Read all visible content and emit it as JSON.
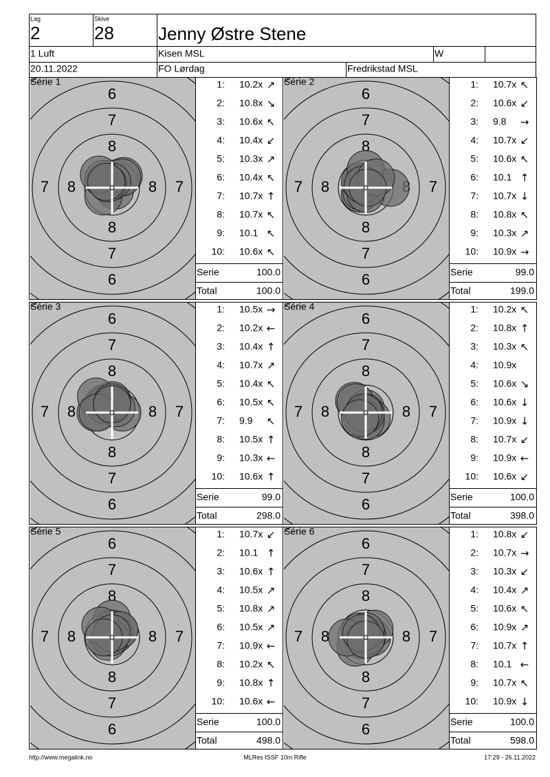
{
  "header": {
    "lag_label": "Lag",
    "lag": "2",
    "skive_label": "Skive",
    "skive": "28",
    "name": "Jenny Østre Stene",
    "class": "1 Luft",
    "club": "Kisen MSL",
    "gender": "W",
    "date": "20.11.2022",
    "event": "FO Lørdag",
    "location": "Fredrikstad MSL"
  },
  "target_rings": [
    "6",
    "7",
    "8"
  ],
  "series": [
    {
      "title": "Série 1",
      "shots": [
        {
          "no": "1:",
          "score": "10.2x",
          "dir": "↗"
        },
        {
          "no": "2:",
          "score": "10.8x",
          "dir": "↘"
        },
        {
          "no": "3:",
          "score": "10.6x",
          "dir": "↖"
        },
        {
          "no": "4:",
          "score": "10.4x",
          "dir": "↙"
        },
        {
          "no": "5:",
          "score": "10.3x",
          "dir": "↗"
        },
        {
          "no": "6:",
          "score": "10.4x",
          "dir": "↖"
        },
        {
          "no": "7:",
          "score": "10.7x",
          "dir": "↑"
        },
        {
          "no": "8:",
          "score": "10.7x",
          "dir": "↖"
        },
        {
          "no": "9:",
          "score": "10.1",
          "dir": "↖"
        },
        {
          "no": "10:",
          "score": "10.6x",
          "dir": "↖"
        }
      ],
      "serie_label": "Serie",
      "serie": "100.0",
      "total_label": "Total",
      "total": "100.0"
    },
    {
      "title": "Série 2",
      "shots": [
        {
          "no": "1:",
          "score": "10.7x",
          "dir": "↖"
        },
        {
          "no": "2:",
          "score": "10.6x",
          "dir": "↙"
        },
        {
          "no": "3:",
          "score": "9.8",
          "dir": "→"
        },
        {
          "no": "4:",
          "score": "10.7x",
          "dir": "↙"
        },
        {
          "no": "5:",
          "score": "10.6x",
          "dir": "↖"
        },
        {
          "no": "6:",
          "score": "10.1",
          "dir": "↑"
        },
        {
          "no": "7:",
          "score": "10.7x",
          "dir": "↓"
        },
        {
          "no": "8:",
          "score": "10.8x",
          "dir": "↖"
        },
        {
          "no": "9:",
          "score": "10.3x",
          "dir": "↗"
        },
        {
          "no": "10:",
          "score": "10.9x",
          "dir": "→"
        }
      ],
      "serie_label": "Serie",
      "serie": "99.0",
      "total_label": "Total",
      "total": "199.0"
    },
    {
      "title": "Série 3",
      "shots": [
        {
          "no": "1:",
          "score": "10.5x",
          "dir": "→"
        },
        {
          "no": "2:",
          "score": "10.2x",
          "dir": "←"
        },
        {
          "no": "3:",
          "score": "10.4x",
          "dir": "↑"
        },
        {
          "no": "4:",
          "score": "10.7x",
          "dir": "↗"
        },
        {
          "no": "5:",
          "score": "10.4x",
          "dir": "↖"
        },
        {
          "no": "6:",
          "score": "10.5x",
          "dir": "↖"
        },
        {
          "no": "7:",
          "score": "9.9",
          "dir": "↖"
        },
        {
          "no": "8:",
          "score": "10.5x",
          "dir": "↑"
        },
        {
          "no": "9:",
          "score": "10.3x",
          "dir": "←"
        },
        {
          "no": "10:",
          "score": "10.6x",
          "dir": "↑"
        }
      ],
      "serie_label": "Serie",
      "serie": "99.0",
      "total_label": "Total",
      "total": "298.0"
    },
    {
      "title": "Série 4",
      "shots": [
        {
          "no": "1:",
          "score": "10.2x",
          "dir": "↖"
        },
        {
          "no": "2:",
          "score": "10.8x",
          "dir": "↑"
        },
        {
          "no": "3:",
          "score": "10.3x",
          "dir": "↖"
        },
        {
          "no": "4:",
          "score": "10.9x"
        },
        {
          "no": "5:",
          "score": "10.6x",
          "dir": "↘"
        },
        {
          "no": "6:",
          "score": "10.6x",
          "dir": "↓"
        },
        {
          "no": "7:",
          "score": "10.9x",
          "dir": "↓"
        },
        {
          "no": "8:",
          "score": "10.7x",
          "dir": "↙"
        },
        {
          "no": "9:",
          "score": "10.9x",
          "dir": "←"
        },
        {
          "no": "10:",
          "score": "10.6x",
          "dir": "↙"
        }
      ],
      "serie_label": "Serie",
      "serie": "100.0",
      "total_label": "Total",
      "total": "398.0"
    },
    {
      "title": "Série 5",
      "shots": [
        {
          "no": "1:",
          "score": "10.7x",
          "dir": "↙"
        },
        {
          "no": "2:",
          "score": "10.1",
          "dir": "↑"
        },
        {
          "no": "3:",
          "score": "10.6x",
          "dir": "↑"
        },
        {
          "no": "4:",
          "score": "10.5x",
          "dir": "↗"
        },
        {
          "no": "5:",
          "score": "10.8x",
          "dir": "↗"
        },
        {
          "no": "6:",
          "score": "10.5x",
          "dir": "↗"
        },
        {
          "no": "7:",
          "score": "10.9x",
          "dir": "←"
        },
        {
          "no": "8:",
          "score": "10.2x",
          "dir": "↖"
        },
        {
          "no": "9:",
          "score": "10.8x",
          "dir": "↑"
        },
        {
          "no": "10:",
          "score": "10.6x",
          "dir": "←"
        }
      ],
      "serie_label": "Serie",
      "serie": "100.0",
      "total_label": "Total",
      "total": "498.0"
    },
    {
      "title": "Série 6",
      "shots": [
        {
          "no": "1:",
          "score": "10.8x",
          "dir": "↙"
        },
        {
          "no": "2:",
          "score": "10.7x",
          "dir": "→"
        },
        {
          "no": "3:",
          "score": "10.3x",
          "dir": "↙"
        },
        {
          "no": "4:",
          "score": "10.4x",
          "dir": "↗"
        },
        {
          "no": "5:",
          "score": "10.6x",
          "dir": "↖"
        },
        {
          "no": "6:",
          "score": "10.9x",
          "dir": "↗"
        },
        {
          "no": "7:",
          "score": "10.7x",
          "dir": "↑"
        },
        {
          "no": "8:",
          "score": "10.1",
          "dir": "←"
        },
        {
          "no": "9:",
          "score": "10.7x",
          "dir": "↖"
        },
        {
          "no": "10:",
          "score": "10.9x",
          "dir": "↓"
        }
      ],
      "serie_label": "Serie",
      "serie": "100.0",
      "total_label": "Total",
      "total": "598.0"
    }
  ],
  "footer": {
    "url": "http://www.megalink.no",
    "software": "MLRes ISSF 10m Rifle",
    "timestamp": "17:29 - 26.11.2022"
  }
}
